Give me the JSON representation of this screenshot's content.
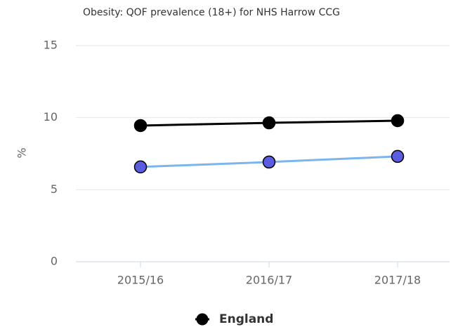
{
  "chart_data": {
    "type": "line",
    "title": "Obesity: QOF prevalence (18+) for NHS Harrow CCG",
    "y_label": "%",
    "categories": [
      "2015/16",
      "2016/17",
      "2017/18"
    ],
    "series": [
      {
        "name": "England",
        "color": "#000000",
        "values": [
          9.45,
          9.64,
          9.79
        ]
      },
      {
        "color": "#7cb5ec",
        "marker_color": "#5c5ce0",
        "values": [
          6.58,
          6.92,
          7.31
        ]
      }
    ],
    "ylim": [
      0,
      15
    ],
    "yticks": [
      0,
      5,
      10,
      15
    ],
    "grid": true,
    "legend": "bottom"
  }
}
